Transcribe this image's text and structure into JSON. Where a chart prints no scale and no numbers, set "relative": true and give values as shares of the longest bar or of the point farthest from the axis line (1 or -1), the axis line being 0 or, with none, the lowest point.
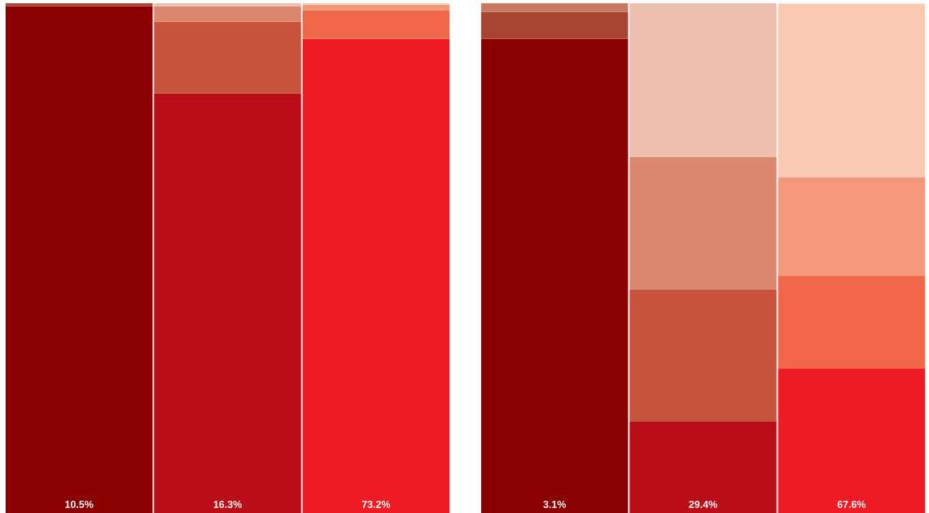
{
  "chart_data": [
    {
      "type": "bar",
      "stacked": true,
      "relative": true,
      "categories": [
        "10.5%",
        "16.3%",
        "73.2%"
      ],
      "series": [
        {
          "values": [
            0.994,
            0.823,
            0.93
          ],
          "colors": [
            "#8b0000",
            "#b90e17",
            "#ed1c24"
          ]
        },
        {
          "values": [
            0.006,
            0.141,
            0.056
          ],
          "colors": [
            "#a84530",
            "#c6533c",
            "#f0674a"
          ]
        },
        {
          "values": [
            0,
            0.03,
            0.011
          ],
          "colors": [
            "#c87860",
            "#dc8870",
            "#f5977a"
          ]
        },
        {
          "values": [
            0,
            0.006,
            0.003
          ],
          "colors": [
            "#edbfae",
            "#edbfae",
            "#fbc8b4"
          ]
        }
      ]
    },
    {
      "type": "bar",
      "stacked": true,
      "relative": true,
      "categories": [
        "3.1%",
        "29.4%",
        "67.6%"
      ],
      "series": [
        {
          "values": [
            0.93,
            0.179,
            0.284
          ],
          "colors": [
            "#8b0000",
            "#b90e17",
            "#ed1c24"
          ]
        },
        {
          "values": [
            0.053,
            0.26,
            0.182
          ],
          "colors": [
            "#a84530",
            "#c6533c",
            "#f0674a"
          ]
        },
        {
          "values": [
            0.017,
            0.259,
            0.193
          ],
          "colors": [
            "#c87860",
            "#dc8870",
            "#f5977a"
          ]
        },
        {
          "values": [
            0,
            0.302,
            0.34
          ],
          "colors": [
            "#edbfae",
            "#edbfae",
            "#fbc8b4"
          ]
        }
      ]
    }
  ]
}
